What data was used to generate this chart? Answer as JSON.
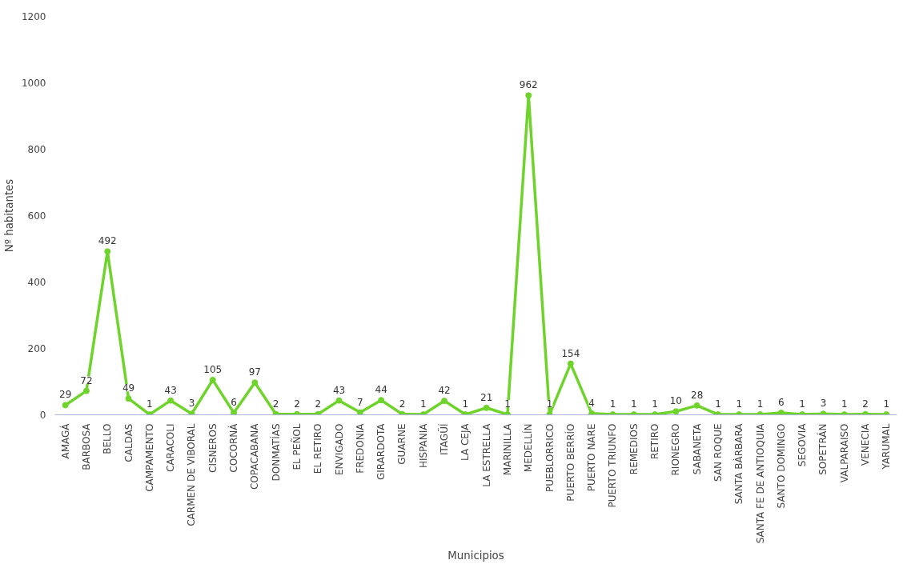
{
  "chart_data": {
    "type": "line",
    "xlabel": "Municipios",
    "ylabel": "Nº habitantes",
    "categories": [
      "AMAGÁ",
      "BARBOSA",
      "BELLO",
      "CALDAS",
      "CAMPAMENTO",
      "CARACOLI",
      "CARMEN DE VIBORAL",
      "CISNEROS",
      "COCORNÁ",
      "COPACABANA",
      "DONMATÍAS",
      "EL PEÑOL",
      "EL RETIRO",
      "ENVIGADO",
      "FREDONIA",
      "GIRARDOTA",
      "GUARNE",
      "HISPANIA",
      "ITAGÜÍ",
      "LA CEJA",
      "LA ESTRELLA",
      "MARINILLA",
      "MEDELLÍN",
      "PUEBLORRICO",
      "PUERTO BERRÍO",
      "PUERTO NARE",
      "PUERTO TRIUNFO",
      "REMEDIOS",
      "RETIRO",
      "RIONEGRO",
      "SABANETA",
      "SAN ROQUE",
      "SANTA BÀRBARA",
      "SANTA FE DE ANTIOQUIA",
      "SANTO DOMINGO",
      "SEGOVIA",
      "SOPETRÁN",
      "VALPARAISO",
      "VENECIA",
      "YARUMAL"
    ],
    "series": [
      {
        "color": "#6ed42b",
        "values": [
          29,
          72,
          492,
          49,
          1,
          43,
          3,
          105,
          6,
          97,
          2,
          2,
          2,
          43,
          7,
          44,
          2,
          1,
          42,
          1,
          21,
          1,
          962,
          1,
          154,
          4,
          1,
          1,
          1,
          10,
          28,
          1,
          1,
          1,
          6,
          1,
          3,
          1,
          2,
          1
        ]
      }
    ],
    "ylim": [
      0,
      1200
    ],
    "yticks": [
      0,
      200,
      400,
      600,
      800,
      1000,
      1200
    ],
    "data_labels": true,
    "marker": "circle",
    "line_style": "solid",
    "grid": false
  }
}
